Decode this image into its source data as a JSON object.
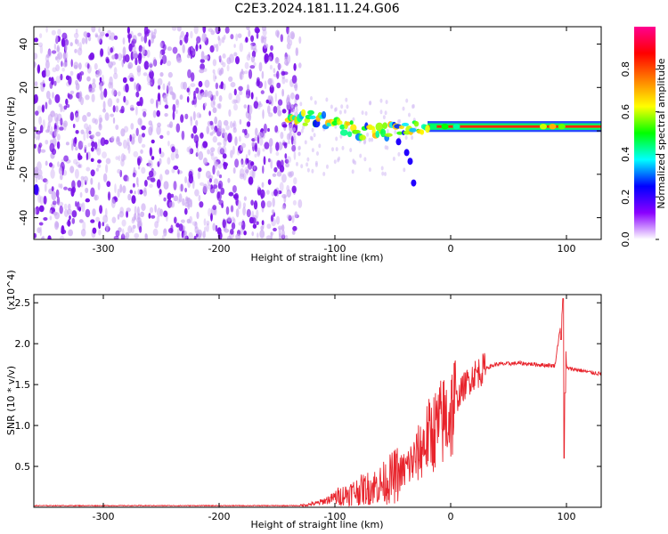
{
  "title": "C2E3.2024.181.11.24.G06",
  "chart_data": [
    {
      "type": "heatmap",
      "xlabel": "Height of straight line (km)",
      "ylabel": "Frequency (Hz)",
      "xlim": [
        -360,
        130
      ],
      "ylim": [
        -50,
        48
      ],
      "x_ticks": [
        -300,
        -200,
        -100,
        0,
        100
      ],
      "y_ticks": [
        -40,
        -20,
        0,
        20,
        40
      ],
      "colorbar": {
        "label": "Normalized spectral amplitude",
        "range": [
          0,
          1
        ],
        "ticks": [
          "0.0",
          "0.2",
          "0.4",
          "0.6",
          "0.8"
        ],
        "colors": [
          "#ffffff",
          "#8a00ff",
          "#0000ff",
          "#00ffff",
          "#00ff00",
          "#ffff00",
          "#ff8000",
          "#ff0000",
          "#ff0090"
        ]
      },
      "noise_region_x": [
        -360,
        -130
      ],
      "signal_track": [
        {
          "x": -140,
          "y": 6
        },
        {
          "x": -120,
          "y": 6
        },
        {
          "x": -100,
          "y": 3
        },
        {
          "x": -80,
          "y": 0
        },
        {
          "x": -60,
          "y": -1
        },
        {
          "x": -45,
          "y": 1
        },
        {
          "x": -35,
          "y": 2
        },
        {
          "x": -20,
          "y": 2
        },
        {
          "x": 0,
          "y": 2
        },
        {
          "x": 50,
          "y": 2
        },
        {
          "x": 90,
          "y": 2
        },
        {
          "x": 130,
          "y": 2
        }
      ],
      "branch_track": [
        {
          "x": -45,
          "y": -5
        },
        {
          "x": -38,
          "y": -10
        },
        {
          "x": -35,
          "y": -14
        },
        {
          "x": -32,
          "y": -24
        }
      ]
    },
    {
      "type": "line",
      "xlabel": "Height of straight line (km)",
      "ylabel": "SNR (10 * v/v)",
      "y_multiplier": "(x10^4)",
      "xlim": [
        -360,
        130
      ],
      "ylim": [
        0,
        2.6
      ],
      "x_ticks": [
        -300,
        -200,
        -100,
        0,
        100
      ],
      "y_ticks": [
        0.5,
        1.0,
        1.5,
        2.0,
        2.5
      ],
      "series": [
        {
          "color": "#e8242c",
          "x": [
            -360,
            -300,
            -200,
            -130,
            -115,
            -100,
            -80,
            -60,
            -40,
            -30,
            -20,
            -10,
            0,
            10,
            20,
            30,
            40,
            60,
            80,
            90,
            98,
            100,
            110,
            120,
            130
          ],
          "y": [
            0.02,
            0.02,
            0.02,
            0.02,
            0.05,
            0.12,
            0.2,
            0.28,
            0.45,
            0.6,
            0.85,
            1.0,
            1.15,
            1.45,
            1.62,
            1.7,
            1.75,
            1.76,
            1.74,
            1.73,
            2.55,
            1.7,
            1.68,
            1.65,
            1.63
          ]
        }
      ]
    }
  ]
}
